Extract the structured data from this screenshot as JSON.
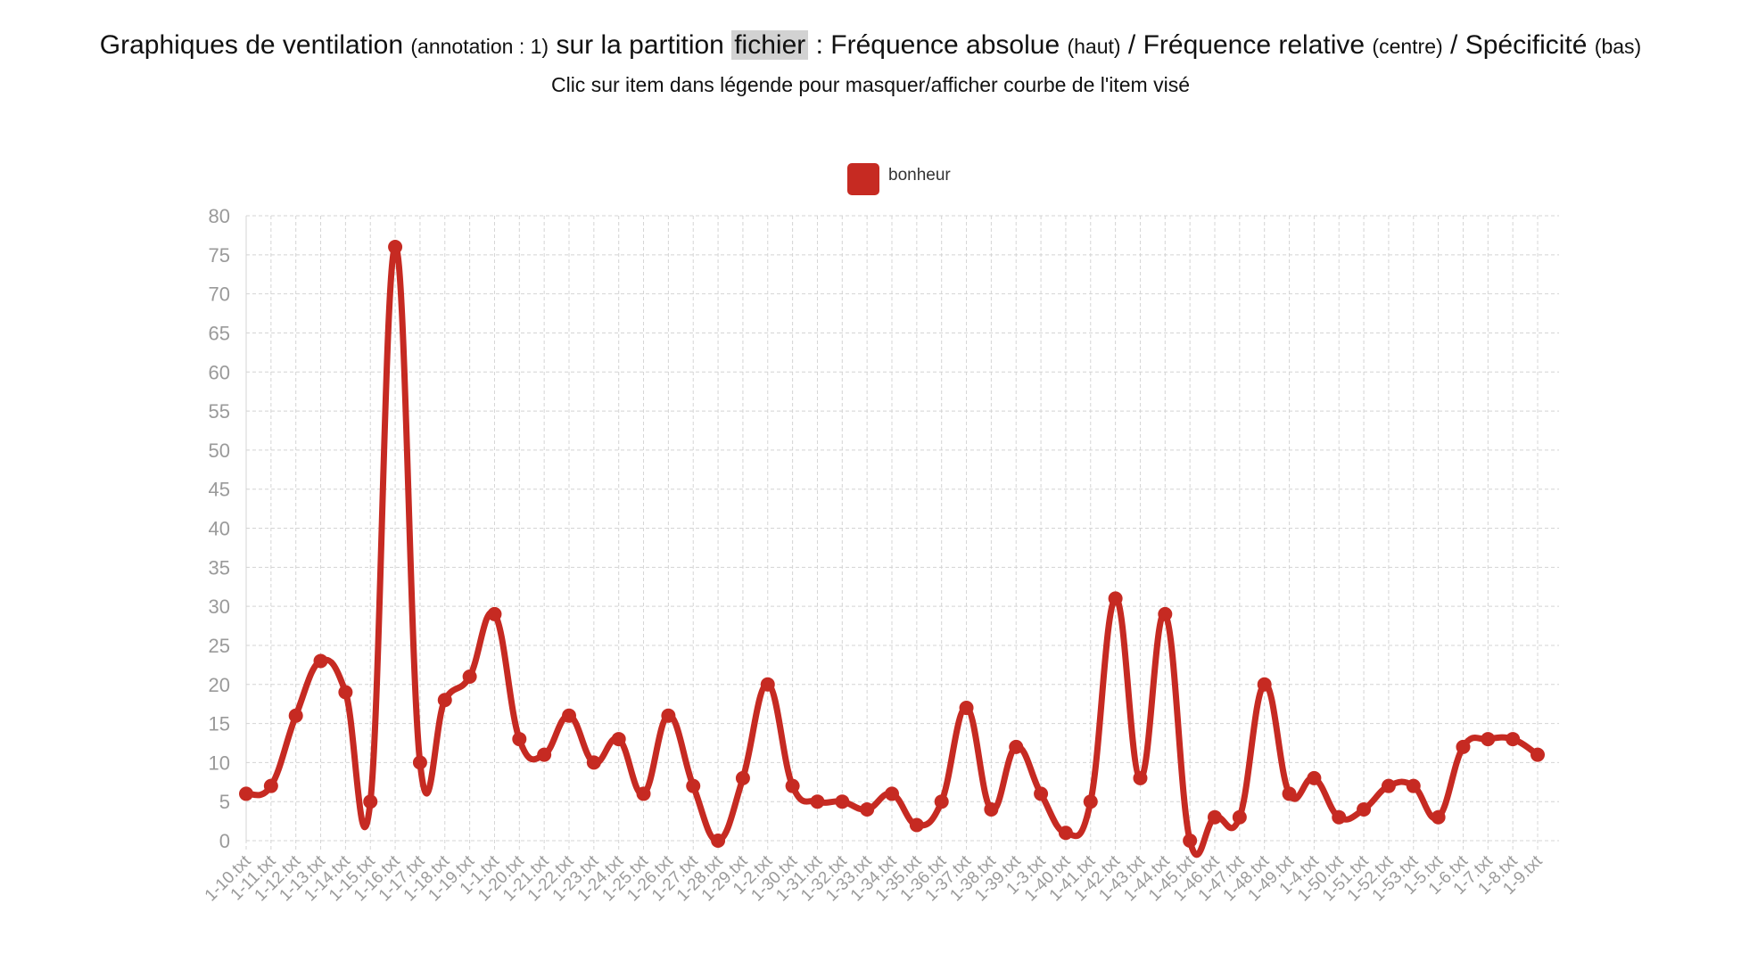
{
  "header": {
    "title_main": "Graphiques de ventilation",
    "title_annotation": "(annotation : 1)",
    "title_mid": "sur la partition",
    "title_partition": "fichier",
    "title_colon": ":",
    "title_abs": "Fréquence absolue",
    "title_abs_pos": "(haut)",
    "title_sep1": "/",
    "title_rel": "Fréquence relative",
    "title_rel_pos": "(centre)",
    "title_sep2": "/",
    "title_spec": "Spécificité",
    "title_spec_pos": "(bas)",
    "subtitle": "Clic sur item dans légende pour masquer/afficher courbe de l'item visé"
  },
  "colors": {
    "series": "#c62a22",
    "grid": "#d4d4d4",
    "tick": "#9a9a9a"
  },
  "chart_data": {
    "type": "line",
    "title": "Graphiques de ventilation (annotation : 1) sur la partition fichier : Fréquence absolue (haut) / Fréquence relative (centre) / Spécificité (bas)",
    "xlabel": "",
    "ylabel": "",
    "ylim": [
      0,
      80
    ],
    "yticks": [
      0,
      5,
      10,
      15,
      20,
      25,
      30,
      35,
      40,
      45,
      50,
      55,
      60,
      65,
      70,
      75,
      80
    ],
    "grid": true,
    "legend_position": "top-center",
    "categories": [
      "1-10.txt",
      "1-11.txt",
      "1-12.txt",
      "1-13.txt",
      "1-14.txt",
      "1-15.txt",
      "1-16.txt",
      "1-17.txt",
      "1-18.txt",
      "1-19.txt",
      "1-1.txt",
      "1-20.txt",
      "1-21.txt",
      "1-22.txt",
      "1-23.txt",
      "1-24.txt",
      "1-25.txt",
      "1-26.txt",
      "1-27.txt",
      "1-28.txt",
      "1-29.txt",
      "1-2.txt",
      "1-30.txt",
      "1-31.txt",
      "1-32.txt",
      "1-33.txt",
      "1-34.txt",
      "1-35.txt",
      "1-36.txt",
      "1-37.txt",
      "1-38.txt",
      "1-39.txt",
      "1-3.txt",
      "1-40.txt",
      "1-41.txt",
      "1-42.txt",
      "1-43.txt",
      "1-44.txt",
      "1-45.txt",
      "1-46.txt",
      "1-47.txt",
      "1-48.txt",
      "1-49.txt",
      "1-4.txt",
      "1-50.txt",
      "1-51.txt",
      "1-52.txt",
      "1-53.txt",
      "1-5.txt",
      "1-6.txt",
      "1-7.txt",
      "1-8.txt",
      "1-9.txt"
    ],
    "series": [
      {
        "name": "bonheur",
        "color": "#c62a22",
        "values": [
          6,
          7,
          16,
          23,
          19,
          5,
          76,
          10,
          18,
          21,
          29,
          13,
          11,
          16,
          10,
          13,
          6,
          16,
          7,
          0,
          8,
          20,
          7,
          5,
          5,
          4,
          6,
          2,
          5,
          17,
          4,
          12,
          6,
          1,
          5,
          31,
          8,
          29,
          0,
          3,
          3,
          20,
          6,
          8,
          3,
          4,
          7,
          7,
          3,
          12,
          13,
          13,
          11
        ]
      }
    ]
  }
}
